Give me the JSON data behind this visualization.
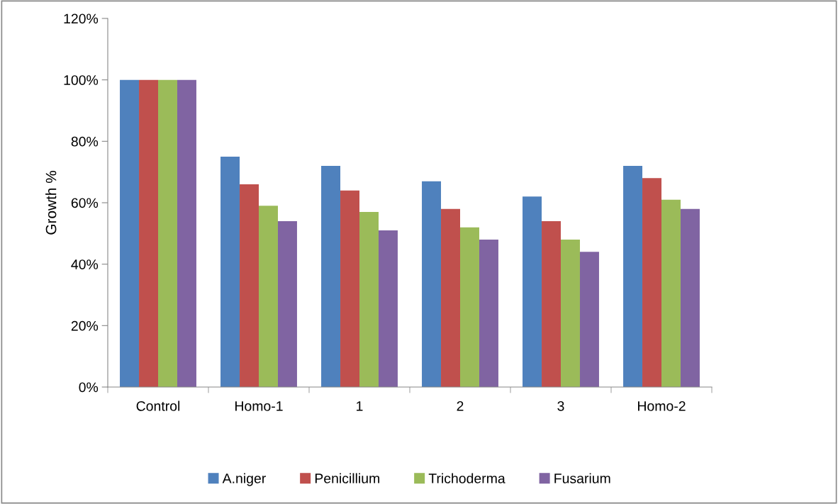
{
  "chart_data": {
    "type": "bar",
    "ylabel": "Growth %",
    "categories": [
      "Control",
      "Homo-1",
      "1",
      "2",
      "3",
      "Homo-2"
    ],
    "series": [
      {
        "name": "A.niger",
        "color": "#4f81bd",
        "values": [
          100,
          75,
          72,
          67,
          62,
          72
        ]
      },
      {
        "name": "Penicillium",
        "color": "#c0504d",
        "values": [
          100,
          66,
          64,
          58,
          54,
          68
        ]
      },
      {
        "name": "Trichoderma",
        "color": "#9bbb59",
        "values": [
          100,
          59,
          57,
          52,
          48,
          61
        ]
      },
      {
        "name": "Fusarium",
        "color": "#8064a2",
        "values": [
          100,
          54,
          51,
          48,
          44,
          58
        ]
      }
    ],
    "ylim": [
      0,
      120
    ],
    "yticks": [
      {
        "value": 0,
        "label": "0%"
      },
      {
        "value": 20,
        "label": "20%"
      },
      {
        "value": 40,
        "label": "40%"
      },
      {
        "value": 60,
        "label": "60%"
      },
      {
        "value": 80,
        "label": "80%"
      },
      {
        "value": 100,
        "label": "100%"
      },
      {
        "value": 120,
        "label": "120%"
      }
    ],
    "grid": false,
    "legend": "bottom"
  }
}
